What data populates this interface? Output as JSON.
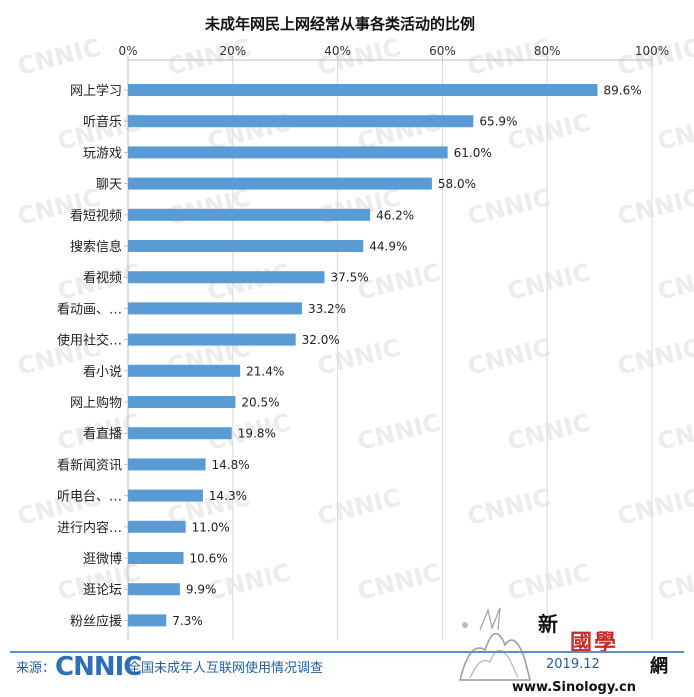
{
  "chart_data": {
    "type": "bar",
    "orientation": "horizontal",
    "title": "未成年网民上网经常从事各类活动的比例",
    "categories": [
      "网上学习",
      "听音乐",
      "玩游戏",
      "聊天",
      "看短视频",
      "搜索信息",
      "看视频",
      "看动画、…",
      "使用社交…",
      "看小说",
      "网上购物",
      "看直播",
      "看新闻资讯",
      "听电台、…",
      "进行内容…",
      "逛微博",
      "逛论坛",
      "粉丝应援"
    ],
    "values": [
      89.6,
      65.9,
      61.0,
      58.0,
      46.2,
      44.9,
      37.5,
      33.2,
      32.0,
      21.4,
      20.5,
      19.8,
      14.8,
      14.3,
      11.0,
      10.6,
      9.9,
      7.3
    ],
    "value_labels": [
      "89.6%",
      "65.9%",
      "61.0%",
      "58.0%",
      "46.2%",
      "44.9%",
      "37.5%",
      "33.2%",
      "32.0%",
      "21.4%",
      "20.5%",
      "19.8%",
      "14.8%",
      "14.3%",
      "11.0%",
      "10.6%",
      "9.9%",
      "7.3%"
    ],
    "xlim": [
      0,
      100
    ],
    "xticks": [
      0,
      20,
      40,
      60,
      80,
      100
    ],
    "xtick_labels": [
      "0%",
      "20%",
      "40%",
      "60%",
      "80%",
      "100%"
    ],
    "axis_position": "top",
    "grid": true,
    "bar_color": "#5b9bd5",
    "watermark_text": "CNNIC"
  },
  "footer": {
    "source_label": "来源：",
    "logo_text": "CNNIC",
    "survey_text": "全国未成年人互联网使用情况调查",
    "date": "2019.12"
  },
  "watermark": {
    "xin": "新",
    "guoxue": "國學",
    "wang": "網",
    "site": "www.Sinology.cn",
    "title_color": "#c8292b"
  }
}
